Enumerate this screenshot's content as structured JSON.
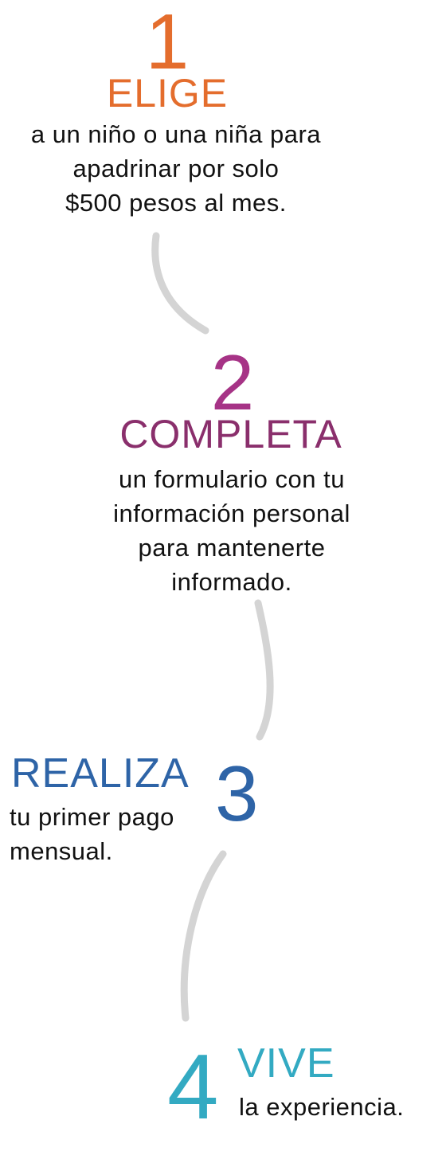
{
  "colors": {
    "step1": "#e46d2d",
    "step2_number": "#a63386",
    "step2_title": "#8a2f6c",
    "step3": "#2e64a7",
    "step4": "#33aac2",
    "connector": "#d4d4d4",
    "text": "#111111"
  },
  "steps": [
    {
      "number": "1",
      "title": "ELIGE",
      "lines": [
        "a un niño o una niña para",
        "apadrinar por solo",
        "$500 pesos al mes."
      ]
    },
    {
      "number": "2",
      "title": "COMPLETA",
      "lines": [
        "un formulario con tu",
        "información personal",
        "para mantenerte",
        "informado."
      ]
    },
    {
      "number": "3",
      "title": "REALIZA",
      "lines": [
        "tu primer pago",
        "mensual."
      ]
    },
    {
      "number": "4",
      "title": "VIVE",
      "lines": [
        "la experiencia."
      ]
    }
  ]
}
